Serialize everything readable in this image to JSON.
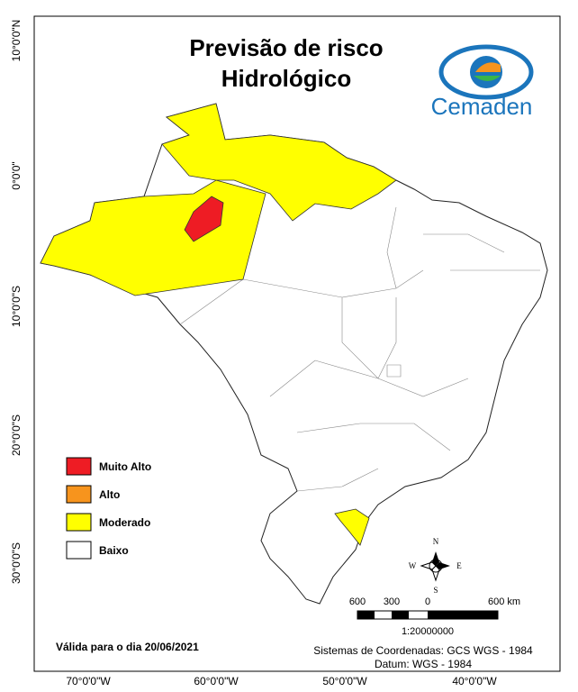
{
  "title": {
    "line1": "Previsão de risco",
    "line2": "Hidrológico"
  },
  "logo": {
    "text": "Cemaden"
  },
  "graticule": {
    "latitude": [
      "10°0'0\"N",
      "0°0'0\"",
      "10°0'0\"S",
      "20°0'0\"S",
      "30°0'0\"S"
    ],
    "longitude": [
      "70°0'0\"W",
      "60°0'0\"W",
      "50°0'0\"W",
      "40°0'0\"W"
    ]
  },
  "legend": [
    {
      "label": "Muito Alto",
      "color": "#ee1c24"
    },
    {
      "label": "Alto",
      "color": "#f7941d"
    },
    {
      "label": "Moderado",
      "color": "#ffff00"
    },
    {
      "label": "Baixo",
      "color": "#ffffff"
    }
  ],
  "compass": {
    "north": "N",
    "south": "S",
    "east": "E",
    "west": "W"
  },
  "scale": {
    "labels": [
      "600",
      "300",
      "0",
      "600 km"
    ],
    "ratio": "1:20000000"
  },
  "validity": "Válida para o dia 20/06/2021",
  "coordinates": {
    "system": "Sistemas de Coordenadas: GCS WGS - 1984",
    "datum": "Datum: WGS - 1984"
  }
}
